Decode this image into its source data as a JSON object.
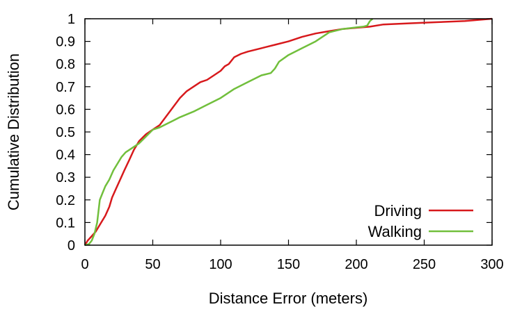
{
  "chart_data": {
    "type": "line",
    "title": "",
    "xlabel": "Distance Error (meters)",
    "ylabel": "Cumulative Distribution",
    "xlim": [
      0,
      300
    ],
    "ylim": [
      0,
      1
    ],
    "xticks": [
      "0",
      "50",
      "100",
      "150",
      "200",
      "250",
      "300"
    ],
    "yticks": [
      "0",
      "0.1",
      "0.2",
      "0.3",
      "0.4",
      "0.5",
      "0.6",
      "0.7",
      "0.8",
      "0.9",
      "1"
    ],
    "grid": false,
    "legend_position": "bottom-right",
    "series": [
      {
        "name": "Driving",
        "color": "#d7191c",
        "points": [
          [
            0,
            0.0
          ],
          [
            2,
            0.02
          ],
          [
            5,
            0.04
          ],
          [
            8,
            0.06
          ],
          [
            10,
            0.08
          ],
          [
            12,
            0.1
          ],
          [
            15,
            0.13
          ],
          [
            18,
            0.17
          ],
          [
            20,
            0.21
          ],
          [
            23,
            0.25
          ],
          [
            26,
            0.29
          ],
          [
            29,
            0.33
          ],
          [
            33,
            0.38
          ],
          [
            36,
            0.42
          ],
          [
            40,
            0.46
          ],
          [
            45,
            0.49
          ],
          [
            50,
            0.51
          ],
          [
            55,
            0.53
          ],
          [
            60,
            0.57
          ],
          [
            65,
            0.61
          ],
          [
            70,
            0.65
          ],
          [
            75,
            0.68
          ],
          [
            80,
            0.7
          ],
          [
            85,
            0.72
          ],
          [
            90,
            0.73
          ],
          [
            95,
            0.75
          ],
          [
            100,
            0.77
          ],
          [
            103,
            0.79
          ],
          [
            106,
            0.8
          ],
          [
            110,
            0.83
          ],
          [
            115,
            0.845
          ],
          [
            120,
            0.855
          ],
          [
            130,
            0.87
          ],
          [
            140,
            0.885
          ],
          [
            150,
            0.9
          ],
          [
            160,
            0.92
          ],
          [
            170,
            0.935
          ],
          [
            180,
            0.945
          ],
          [
            190,
            0.955
          ],
          [
            200,
            0.96
          ],
          [
            210,
            0.965
          ],
          [
            220,
            0.975
          ],
          [
            240,
            0.98
          ],
          [
            260,
            0.985
          ],
          [
            280,
            0.99
          ],
          [
            300,
            1.0
          ]
        ]
      },
      {
        "name": "Walking",
        "color": "#71bf3c",
        "points": [
          [
            0,
            0.0
          ],
          [
            3,
            0.005
          ],
          [
            5,
            0.02
          ],
          [
            7,
            0.05
          ],
          [
            9,
            0.1
          ],
          [
            10,
            0.15
          ],
          [
            11,
            0.2
          ],
          [
            13,
            0.23
          ],
          [
            15,
            0.26
          ],
          [
            18,
            0.29
          ],
          [
            21,
            0.33
          ],
          [
            24,
            0.36
          ],
          [
            27,
            0.39
          ],
          [
            30,
            0.41
          ],
          [
            35,
            0.43
          ],
          [
            40,
            0.45
          ],
          [
            45,
            0.48
          ],
          [
            50,
            0.51
          ],
          [
            55,
            0.52
          ],
          [
            60,
            0.535
          ],
          [
            65,
            0.55
          ],
          [
            70,
            0.565
          ],
          [
            80,
            0.59
          ],
          [
            90,
            0.62
          ],
          [
            100,
            0.65
          ],
          [
            110,
            0.69
          ],
          [
            120,
            0.72
          ],
          [
            130,
            0.75
          ],
          [
            137,
            0.76
          ],
          [
            140,
            0.78
          ],
          [
            143,
            0.81
          ],
          [
            150,
            0.84
          ],
          [
            160,
            0.87
          ],
          [
            170,
            0.9
          ],
          [
            180,
            0.94
          ],
          [
            190,
            0.955
          ],
          [
            200,
            0.962
          ],
          [
            205,
            0.965
          ],
          [
            208,
            0.97
          ],
          [
            210,
            0.99
          ],
          [
            212,
            1.0
          ]
        ]
      }
    ]
  }
}
